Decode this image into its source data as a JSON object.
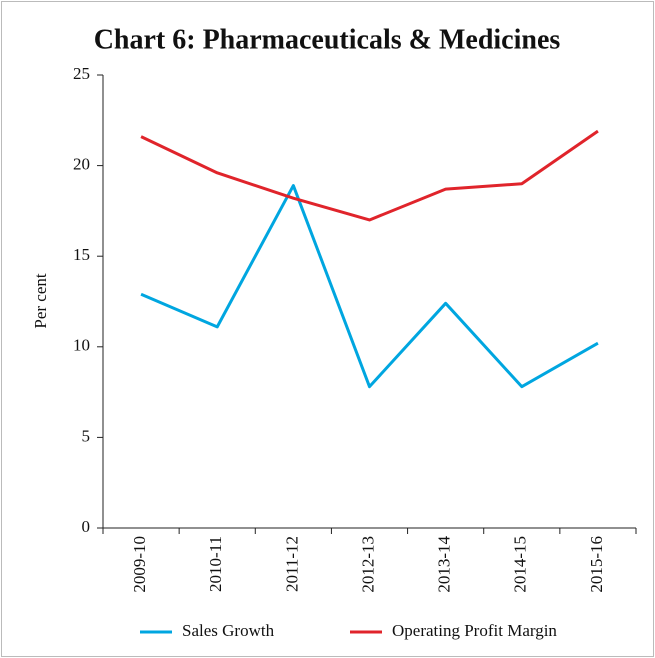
{
  "chart_data": {
    "type": "line",
    "title": "Chart 6: Pharmaceuticals & Medicines",
    "y_label": "Per cent",
    "categories": [
      "2009-10",
      "2010-11",
      "2011-12",
      "2012-13",
      "2013-14",
      "2014-15",
      "2015-16"
    ],
    "series": [
      {
        "name": "Sales Growth",
        "color": "#00a6e0",
        "values": [
          12.9,
          11.1,
          18.9,
          7.8,
          12.4,
          7.8,
          10.2
        ]
      },
      {
        "name": "Operating Profit Margin",
        "color": "#e0242b",
        "values": [
          21.6,
          19.6,
          18.2,
          17.0,
          18.7,
          19.0,
          21.9
        ]
      }
    ],
    "ylim": [
      0,
      25
    ],
    "yticks": [
      0,
      5,
      10,
      15,
      20,
      25
    ],
    "legend": "bottom"
  }
}
